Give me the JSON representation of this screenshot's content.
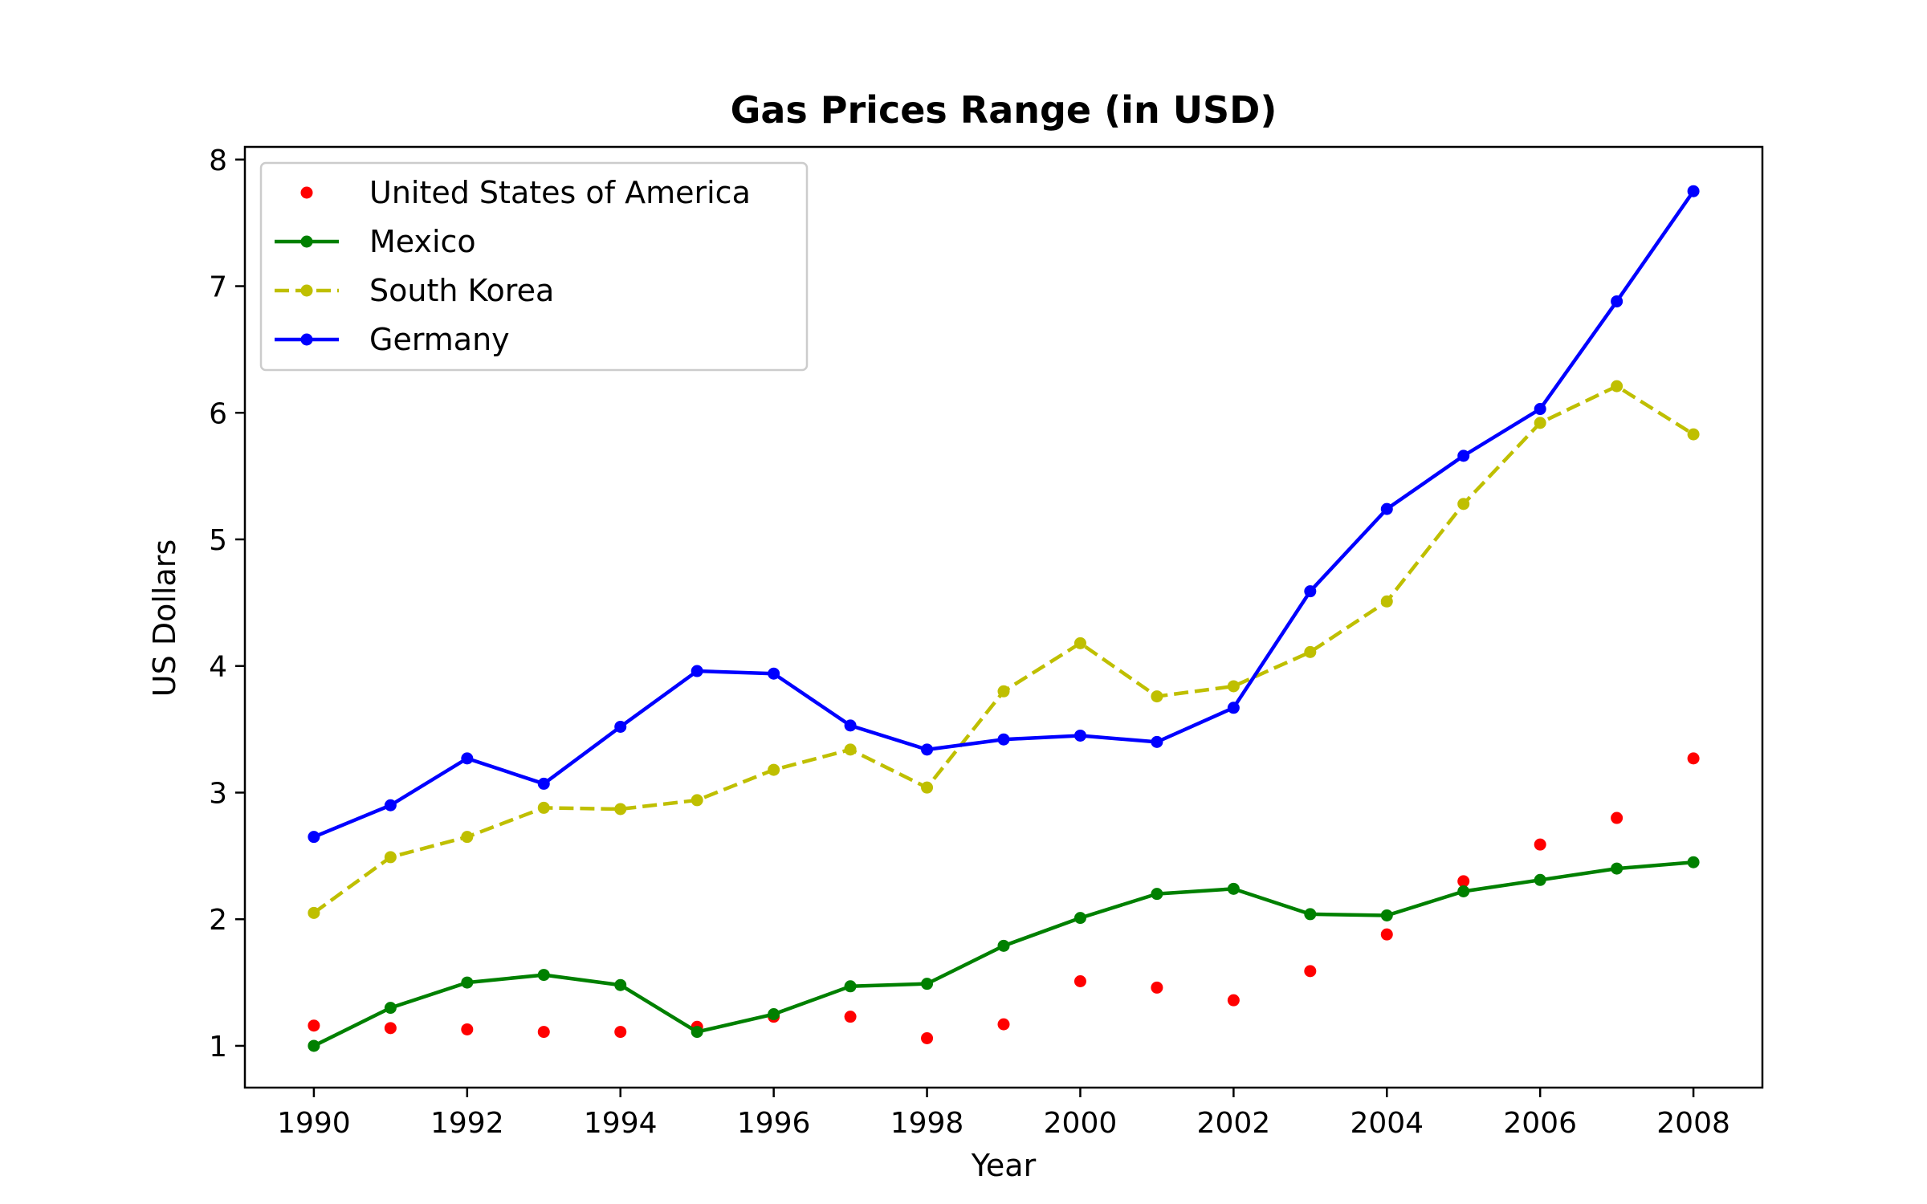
{
  "chart_data": {
    "type": "line",
    "title": "Gas Prices Range (in USD)",
    "xlabel": "Year",
    "ylabel": "US Dollars",
    "xlim": [
      1989.1,
      2008.9
    ],
    "ylim": [
      0.67,
      8.1
    ],
    "x_ticks": [
      1990,
      1992,
      1994,
      1996,
      1998,
      2000,
      2002,
      2004,
      2006,
      2008
    ],
    "y_ticks": [
      1,
      2,
      3,
      4,
      5,
      6,
      7,
      8
    ],
    "x": [
      1990,
      1991,
      1992,
      1993,
      1994,
      1995,
      1996,
      1997,
      1998,
      1999,
      2000,
      2001,
      2002,
      2003,
      2004,
      2005,
      2006,
      2007,
      2008
    ],
    "series": [
      {
        "name": "United States of America",
        "color": "#ff0000",
        "style": "markers",
        "values": [
          1.16,
          1.14,
          1.13,
          1.11,
          1.11,
          1.15,
          1.23,
          1.23,
          1.06,
          1.17,
          1.51,
          1.46,
          1.36,
          1.59,
          1.88,
          2.3,
          2.59,
          2.8,
          3.27
        ]
      },
      {
        "name": "Mexico",
        "color": "#008000",
        "style": "solid",
        "values": [
          1.0,
          1.3,
          1.5,
          1.56,
          1.48,
          1.11,
          1.25,
          1.47,
          1.49,
          1.79,
          2.01,
          2.2,
          2.24,
          2.04,
          2.03,
          2.22,
          2.31,
          2.4,
          2.45
        ]
      },
      {
        "name": "South Korea",
        "color": "#bfbf00",
        "style": "dashed",
        "values": [
          2.05,
          2.49,
          2.65,
          2.88,
          2.87,
          2.94,
          3.18,
          3.34,
          3.04,
          3.8,
          4.18,
          3.76,
          3.84,
          4.11,
          4.51,
          5.28,
          5.92,
          6.21,
          5.83
        ]
      },
      {
        "name": "Germany",
        "color": "#0000ff",
        "style": "solid",
        "values": [
          2.65,
          2.9,
          3.27,
          3.07,
          3.52,
          3.96,
          3.94,
          3.53,
          3.34,
          3.42,
          3.45,
          3.4,
          3.67,
          4.59,
          5.24,
          5.66,
          6.03,
          6.88,
          7.75
        ]
      }
    ],
    "grid": false,
    "legend_position": "upper-left"
  }
}
